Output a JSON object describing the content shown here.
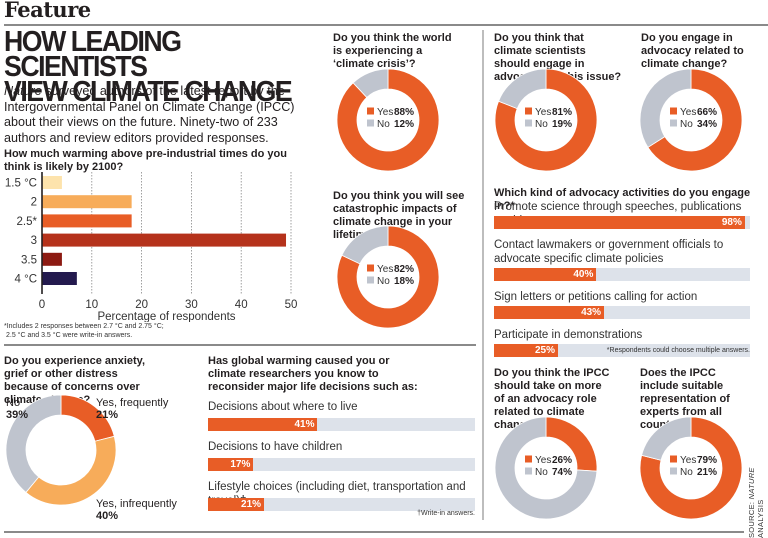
{
  "header": {
    "section_label": "Feature",
    "headline_line1": "HOW LEADING SCIENTISTS",
    "headline_line2": "VIEW CLIMATE CHANGE",
    "intro_italic": "Nature",
    "intro_rest": " surveyed authors of the latest report by the Intergovernmental Panel on Climate Change (IPCC) about their views on the future. Ninety-two of 233 authors and review editors provided responses."
  },
  "colors": {
    "orange": "#e85d26",
    "grey": "#bfc4ce",
    "track": "#dde2ea",
    "light_orange": "#f7ac5a"
  },
  "chart_data": [
    {
      "type": "bar",
      "orientation": "horizontal",
      "title": "How much warming above pre-industrial times do you think is likely by 2100?",
      "categories": [
        "1.5 °C",
        "2",
        "2.5*",
        "3",
        "3.5",
        "4 °C"
      ],
      "values": [
        4,
        18,
        18,
        49,
        4,
        7
      ],
      "colors": [
        "#fde3ac",
        "#f7ac5a",
        "#e85d26",
        "#b5321b",
        "#8c1a12",
        "#231a4e"
      ],
      "xlabel": "Percentage of respondents",
      "xlim": [
        0,
        50
      ],
      "xticks": [
        0,
        10,
        20,
        30,
        40,
        50
      ],
      "grid": "vertical dotted",
      "footnote_line1": "*Includes 2 responses between 2.7 °C and 2.75 °C;",
      "footnote_line2": "2.5 °C and 3.5 °C were write-in answers."
    },
    {
      "type": "pie",
      "id": "crisis",
      "title": "Do you think the world is experiencing a ‘climate crisis’?",
      "labels": [
        "Yes",
        "No"
      ],
      "values": [
        88,
        12
      ],
      "value_labels": [
        "88%",
        "12%"
      ]
    },
    {
      "type": "pie",
      "id": "lifetime",
      "title": "Do you think you will see catastrophic impacts of climate change in your lifetime?",
      "labels": [
        "Yes",
        "No"
      ],
      "values": [
        82,
        18
      ],
      "value_labels": [
        "82%",
        "18%"
      ]
    },
    {
      "type": "pie",
      "id": "should_advocate",
      "title": "Do you think that climate scientists should engage in advocacy on this issue?",
      "labels": [
        "Yes",
        "No"
      ],
      "values": [
        81,
        19
      ],
      "value_labels": [
        "81%",
        "19%"
      ]
    },
    {
      "type": "pie",
      "id": "engage_advocacy",
      "title": "Do you engage in advocacy related to climate change?",
      "labels": [
        "Yes",
        "No"
      ],
      "values": [
        66,
        34
      ],
      "value_labels": [
        "66%",
        "34%"
      ]
    },
    {
      "type": "bar",
      "id": "activities",
      "orientation": "horizontal",
      "title": "Which kind of advocacy activities do you engage in?*",
      "categories": [
        "Promote science through speeches, publications or videos",
        "Contact lawmakers or government officials to advocate specific climate policies",
        "Sign letters or petitions calling for action",
        "Participate in demonstrations"
      ],
      "values": [
        98,
        40,
        43,
        25
      ],
      "value_labels": [
        "98%",
        "40%",
        "43%",
        "25%"
      ],
      "xlim": [
        0,
        100
      ],
      "footnote": "*Respondents could choose multiple answers."
    },
    {
      "type": "pie",
      "id": "anxiety",
      "title": "Do you experience anxiety, grief or other distress because of concerns over climate change?",
      "labels": [
        "Yes, frequently",
        "Yes, infrequently",
        "No"
      ],
      "values": [
        21,
        40,
        39
      ],
      "value_labels": [
        "21%",
        "40%",
        "39%"
      ],
      "colors": [
        "#e85d26",
        "#f7ac5a",
        "#bfc4ce"
      ]
    },
    {
      "type": "bar",
      "id": "life_decisions",
      "orientation": "horizontal",
      "title": "Has global warming caused you or climate researchers you know to reconsider major life decisions such as:",
      "categories": [
        "Decisions about where to live",
        "Decisions to have children",
        "Lifestyle choices (including diet, transportation and travel)†"
      ],
      "values": [
        41,
        17,
        21
      ],
      "value_labels": [
        "41%",
        "17%",
        "21%"
      ],
      "xlim": [
        0,
        100
      ],
      "footnote": "†Write-in answers."
    },
    {
      "type": "pie",
      "id": "ipcc_advocacy",
      "title": "Do you think the IPCC should take on more of an advocacy role related to climate change?",
      "labels": [
        "Yes",
        "No"
      ],
      "values": [
        26,
        74
      ],
      "value_labels": [
        "26%",
        "74%"
      ]
    },
    {
      "type": "pie",
      "id": "ipcc_representation",
      "title": "Does the IPCC include suitable representation of experts from all countries?",
      "labels": [
        "Yes",
        "No"
      ],
      "values": [
        79,
        21
      ],
      "value_labels": [
        "79%",
        "21%"
      ]
    }
  ],
  "source": {
    "prefix": "SOURCE: ",
    "italic": "NATURE",
    "suffix": " ANALYSIS"
  }
}
